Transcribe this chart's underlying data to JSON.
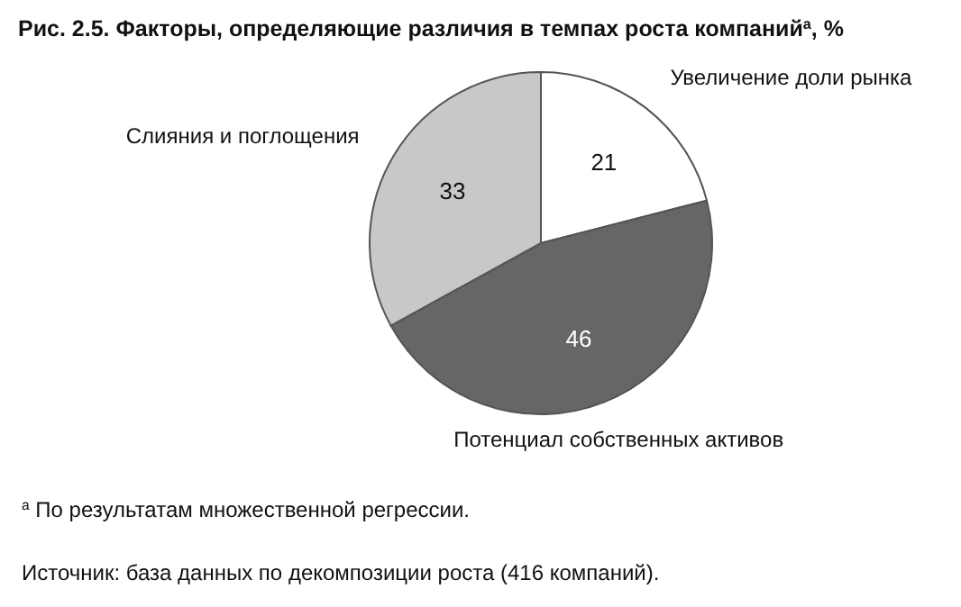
{
  "chart_data": {
    "type": "pie",
    "title": "Рис. 2.5. Факторы, определяющие различия в темпах роста компаний$^{а}$, %",
    "categories": [
      "Увеличение доли рынка",
      "Потенциал собственных активов",
      "Слияния и поглощения"
    ],
    "values": [
      21,
      46,
      33
    ],
    "colors": [
      "#ffffff",
      "#666666",
      "#c8c8c8"
    ],
    "data_labels": true,
    "annotations": [
      "$^{а}$ По результатам множественной регрессии.",
      "Источник: база данных по декомпозиции роста (416 компаний)."
    ]
  }
}
